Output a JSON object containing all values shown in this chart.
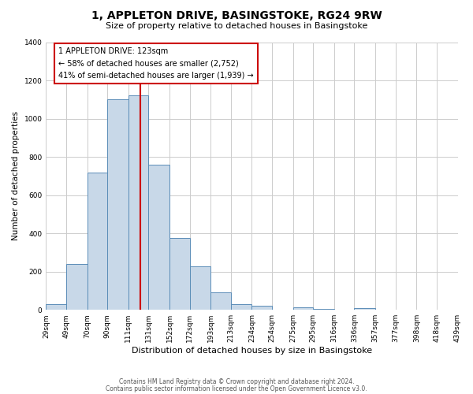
{
  "title": "1, APPLETON DRIVE, BASINGSTOKE, RG24 9RW",
  "subtitle": "Size of property relative to detached houses in Basingstoke",
  "xlabel": "Distribution of detached houses by size in Basingstoke",
  "ylabel": "Number of detached properties",
  "bar_edges": [
    29,
    49,
    70,
    90,
    111,
    131,
    152,
    172,
    193,
    213,
    234,
    254,
    275,
    295,
    316,
    336,
    357,
    377,
    398,
    418,
    439
  ],
  "bar_heights": [
    30,
    240,
    720,
    1100,
    1120,
    760,
    375,
    228,
    90,
    28,
    20,
    0,
    15,
    5,
    0,
    8,
    0,
    0,
    0,
    0
  ],
  "bar_color": "#c8d8e8",
  "bar_edge_color": "#5b8db8",
  "property_line_x": 123,
  "property_line_color": "#cc0000",
  "annotation_box_color": "#cc0000",
  "annotation_text_line1": "1 APPLETON DRIVE: 123sqm",
  "annotation_text_line2": "← 58% of detached houses are smaller (2,752)",
  "annotation_text_line3": "41% of semi-detached houses are larger (1,939) →",
  "ylim": [
    0,
    1400
  ],
  "yticks": [
    0,
    200,
    400,
    600,
    800,
    1000,
    1200,
    1400
  ],
  "tick_labels": [
    "29sqm",
    "49sqm",
    "70sqm",
    "90sqm",
    "111sqm",
    "131sqm",
    "152sqm",
    "172sqm",
    "193sqm",
    "213sqm",
    "234sqm",
    "254sqm",
    "275sqm",
    "295sqm",
    "316sqm",
    "336sqm",
    "357sqm",
    "377sqm",
    "398sqm",
    "418sqm",
    "439sqm"
  ],
  "footer_line1": "Contains HM Land Registry data © Crown copyright and database right 2024.",
  "footer_line2": "Contains public sector information licensed under the Open Government Licence v3.0.",
  "grid_color": "#cccccc",
  "background_color": "#ffffff",
  "fig_width": 6.0,
  "fig_height": 5.0,
  "title_fontsize": 10,
  "subtitle_fontsize": 8,
  "xlabel_fontsize": 8,
  "ylabel_fontsize": 7.5,
  "tick_fontsize": 6.5,
  "annotation_fontsize": 7,
  "footer_fontsize": 5.5
}
